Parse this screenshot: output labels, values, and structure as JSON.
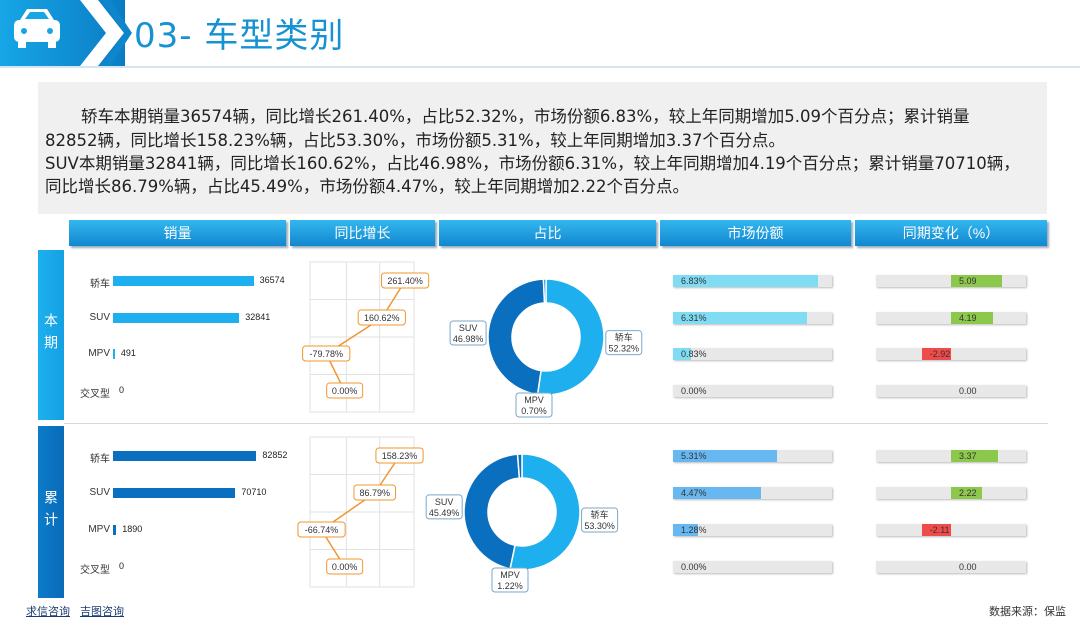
{
  "title": "03- 车型类别",
  "summary": {
    "line1": "轿车本期销量36574辆，同比增长261.40%，占比52.32%，市场份额6.83%，较上年同期增加5.09个百分点；累计销量",
    "line2": "82852辆，同比增长158.23%辆，占比53.30%，市场份额5.31%，较上年同期增加3.37个百分点。",
    "line3": "SUV本期销量32841辆，同比增长160.62%，占比46.98%，市场份额6.31%，较上年同期增加4.19个百分点；累计销量70710辆，",
    "line4": "同比增长86.79%辆，占比45.49%，市场份额4.47%，较上年同期增加2.22个百分点。"
  },
  "column_headers": [
    "销量",
    "同比增长",
    "占比",
    "市场份额",
    "同期变化（%）"
  ],
  "sections": [
    "本期",
    "累计"
  ],
  "footer": {
    "link1": "求信咨询",
    "link2": "吉图咨询",
    "source": "数据来源：保监"
  },
  "colors": {
    "accent": "#1692d2",
    "current_bar": "#1eb0ee",
    "cumulative_bar": "#0b6fbf",
    "share_current": "#7fdcf2",
    "share_cumulative": "#67b7f0",
    "positive": "#8cc84b",
    "negative": "#f04b4b",
    "yoy_line": "#f0962e"
  },
  "chart_data": [
    {
      "type": "bar",
      "section": "本期",
      "metric": "销量",
      "categories": [
        "轿车",
        "SUV",
        "MPV",
        "交叉型"
      ],
      "values": [
        36574,
        32841,
        491,
        0
      ],
      "labels": [
        "36574",
        "32841",
        "491",
        "0"
      ],
      "xlim": [
        0,
        45000
      ]
    },
    {
      "type": "line",
      "section": "本期",
      "metric": "同比增长",
      "categories": [
        "轿车",
        "SUV",
        "MPV",
        "交叉型"
      ],
      "values": [
        261.4,
        160.62,
        -79.78,
        0.0
      ],
      "labels": [
        "261.40%",
        "160.62%",
        "-79.78%",
        "0.00%"
      ],
      "xlim": [
        -150,
        300
      ]
    },
    {
      "type": "pie",
      "section": "本期",
      "metric": "占比",
      "categories": [
        "轿车",
        "SUV",
        "MPV"
      ],
      "values": [
        52.32,
        46.98,
        0.7
      ],
      "labels": [
        "52.32%",
        "46.98%",
        "0.70%"
      ]
    },
    {
      "type": "bar",
      "section": "本期",
      "metric": "市场份额",
      "categories": [
        "轿车",
        "SUV",
        "MPV",
        "交叉型"
      ],
      "values": [
        6.83,
        6.31,
        0.83,
        0.0
      ],
      "labels": [
        "6.83%",
        "6.31%",
        "0.83%",
        "0.00%"
      ],
      "xlim": [
        0,
        7.5
      ]
    },
    {
      "type": "bar",
      "section": "本期",
      "metric": "同期变化（%）",
      "categories": [
        "轿车",
        "SUV",
        "MPV",
        "交叉型"
      ],
      "values": [
        5.09,
        4.19,
        -2.92,
        0.0
      ],
      "labels": [
        "5.09",
        "4.19",
        "-2.92",
        "0.00"
      ],
      "xlim": [
        -7.5,
        7.5
      ]
    },
    {
      "type": "bar",
      "section": "累计",
      "metric": "销量",
      "categories": [
        "轿车",
        "SUV",
        "MPV",
        "交叉型"
      ],
      "values": [
        82852,
        70710,
        1890,
        0
      ],
      "labels": [
        "82852",
        "70710",
        "1890",
        "0"
      ],
      "xlim": [
        0,
        100000
      ]
    },
    {
      "type": "line",
      "section": "累计",
      "metric": "同比增长",
      "categories": [
        "轿车",
        "SUV",
        "MPV",
        "交叉型"
      ],
      "values": [
        158.23,
        86.79,
        -66.74,
        0.0
      ],
      "labels": [
        "158.23%",
        "86.79%",
        "-66.74%",
        "0.00%"
      ],
      "xlim": [
        -100,
        200
      ]
    },
    {
      "type": "pie",
      "section": "累计",
      "metric": "占比",
      "categories": [
        "轿车",
        "SUV",
        "MPV"
      ],
      "values": [
        53.3,
        45.49,
        1.22
      ],
      "labels": [
        "53.30%",
        "45.49%",
        "1.22%"
      ]
    },
    {
      "type": "bar",
      "section": "累计",
      "metric": "市场份额",
      "categories": [
        "轿车",
        "SUV",
        "MPV",
        "交叉型"
      ],
      "values": [
        5.31,
        4.47,
        1.28,
        0.0
      ],
      "labels": [
        "5.31%",
        "4.47%",
        "1.28%",
        "0.00%"
      ],
      "xlim": [
        0,
        8.1
      ]
    },
    {
      "type": "bar",
      "section": "累计",
      "metric": "同期变化（%）",
      "categories": [
        "轿车",
        "SUV",
        "MPV",
        "交叉型"
      ],
      "values": [
        3.37,
        2.22,
        -2.11,
        0.0
      ],
      "labels": [
        "3.37",
        "2.22",
        "-2.11",
        "0.00"
      ],
      "xlim": [
        -5.4,
        5.4
      ]
    }
  ]
}
